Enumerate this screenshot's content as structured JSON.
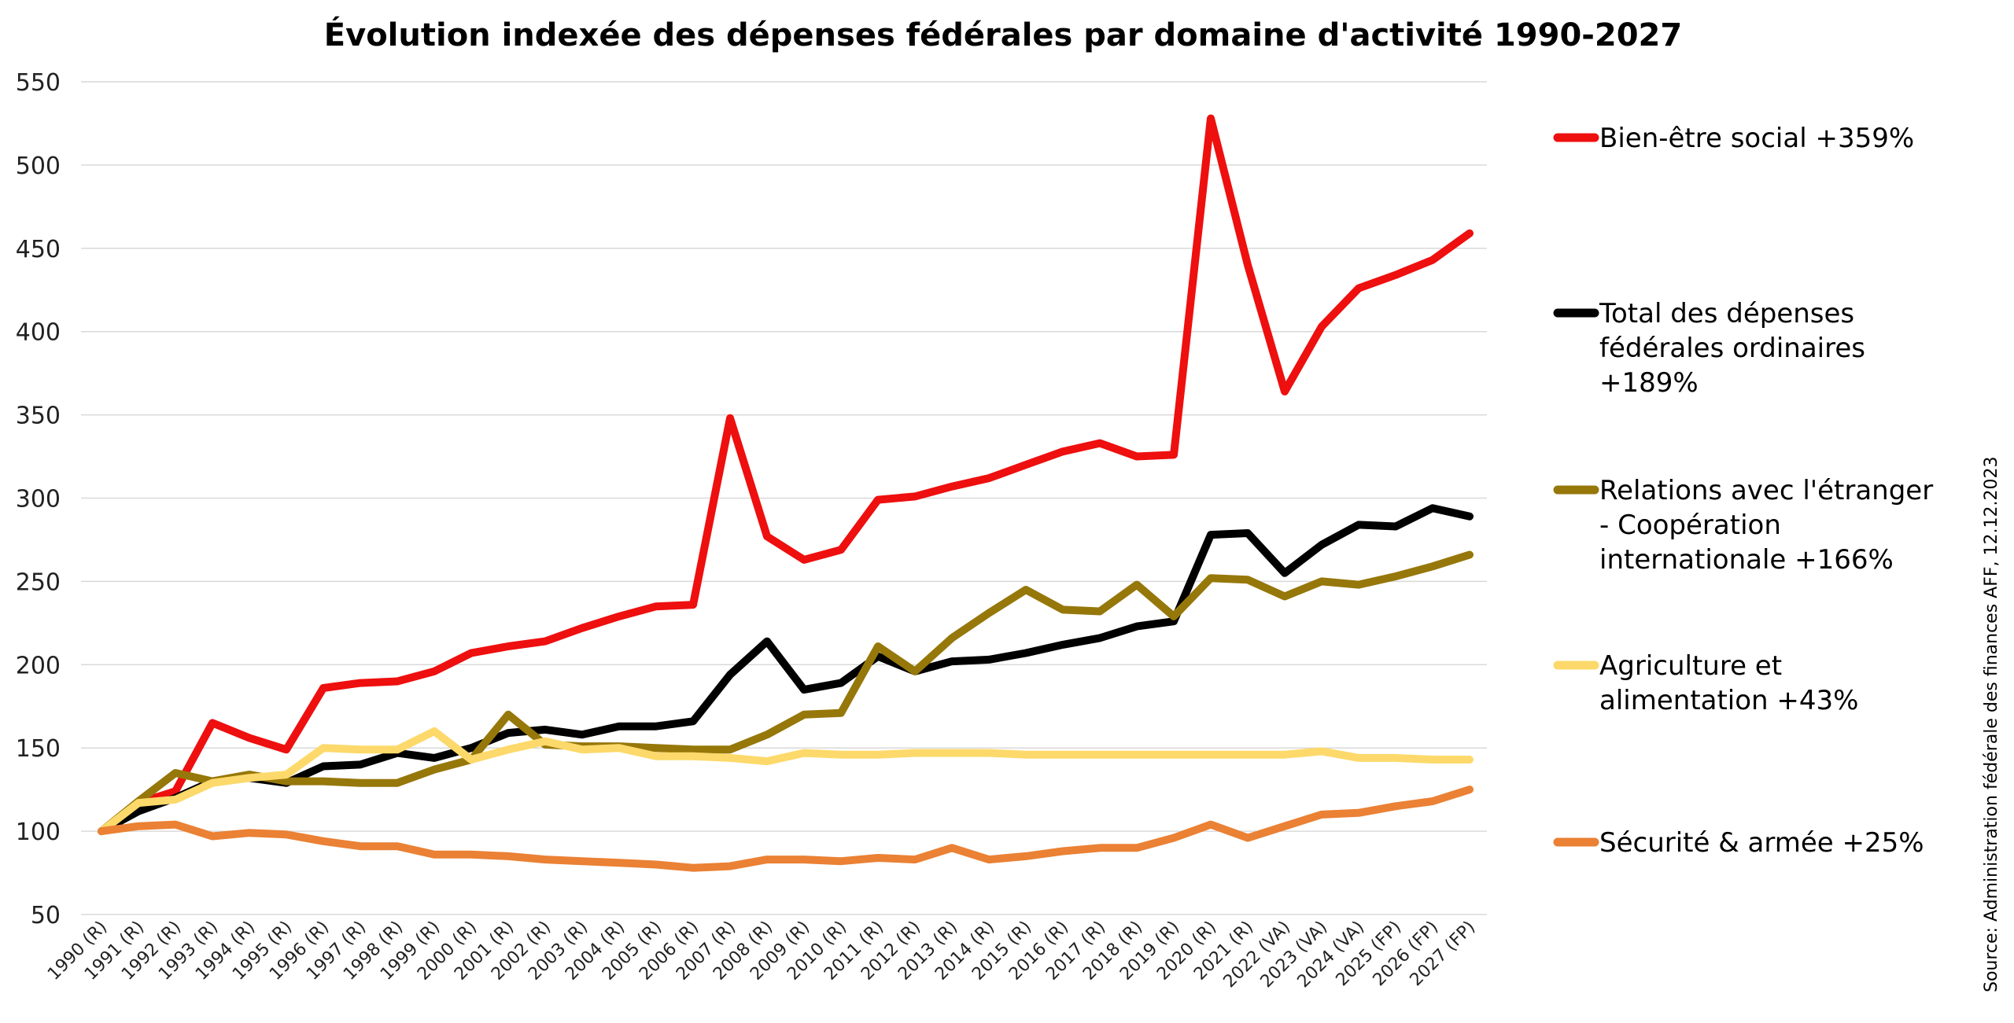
{
  "chart_data": {
    "type": "line",
    "title": "Évolution indexée des dépenses fédérales par domaine d'activité 1990-2027",
    "xlabel": "",
    "ylabel": "",
    "ylim": [
      50,
      550
    ],
    "yticks": [
      50,
      100,
      150,
      200,
      250,
      300,
      350,
      400,
      450,
      500,
      550
    ],
    "grid": true,
    "legend_position": "right",
    "categories": [
      "1990 (R)",
      "1991 (R)",
      "1992 (R)",
      "1993 (R)",
      "1994 (R)",
      "1995 (R)",
      "1996 (R)",
      "1997 (R)",
      "1998 (R)",
      "1999 (R)",
      "2000 (R)",
      "2001 (R)",
      "2002 (R)",
      "2003 (R)",
      "2004 (R)",
      "2005 (R)",
      "2006 (R)",
      "2007 (R)",
      "2008 (R)",
      "2009 (R)",
      "2010 (R)",
      "2011 (R)",
      "2012 (R)",
      "2013 (R)",
      "2014 (R)",
      "2015 (R)",
      "2016 (R)",
      "2017 (R)",
      "2018 (R)",
      "2019 (R)",
      "2020 (R)",
      "2021 (R)",
      "2022 (VA)",
      "2023 (VA)",
      "2024 (VA)",
      "2025 (FP)",
      "2026 (FP)",
      "2027 (FP)"
    ],
    "series": [
      {
        "name": "Bien-être social +359%",
        "color": "#ee0f0f",
        "legend_lines": [
          "Bien-être social +359%"
        ],
        "values": [
          100,
          117,
          124,
          165,
          156,
          149,
          186,
          189,
          190,
          196,
          207,
          211,
          214,
          222,
          229,
          235,
          236,
          348,
          277,
          263,
          269,
          299,
          301,
          307,
          312,
          320,
          328,
          333,
          325,
          326,
          528,
          440,
          364,
          403,
          426,
          434,
          443,
          459
        ]
      },
      {
        "name": "Total des dépenses fédérales ordinaires +189%",
        "color": "#000000",
        "legend_lines": [
          "Total des dépenses",
          "fédérales ordinaires",
          "+189%"
        ],
        "values": [
          100,
          112,
          120,
          130,
          132,
          129,
          139,
          140,
          147,
          144,
          150,
          159,
          161,
          158,
          163,
          163,
          166,
          194,
          214,
          185,
          189,
          205,
          196,
          202,
          203,
          207,
          212,
          216,
          223,
          226,
          278,
          279,
          255,
          272,
          284,
          283,
          294,
          289
        ]
      },
      {
        "name": "Relations avec l'étranger - Coopération internationale +166%",
        "color": "#967709",
        "legend_lines": [
          "Relations avec l'étranger",
          "- Coopération",
          "internationale +166%"
        ],
        "values": [
          100,
          118,
          135,
          130,
          134,
          130,
          130,
          129,
          129,
          137,
          143,
          170,
          152,
          151,
          151,
          150,
          149,
          149,
          158,
          170,
          171,
          211,
          196,
          216,
          231,
          245,
          233,
          232,
          248,
          229,
          252,
          251,
          241,
          250,
          248,
          253,
          259,
          266
        ]
      },
      {
        "name": "Agriculture et alimentation +43%",
        "color": "#fcd96a",
        "legend_lines": [
          "Agriculture et",
          "alimentation +43%"
        ],
        "values": [
          100,
          117,
          119,
          129,
          132,
          134,
          150,
          149,
          149,
          160,
          143,
          149,
          154,
          149,
          150,
          145,
          145,
          144,
          142,
          147,
          146,
          146,
          147,
          147,
          147,
          146,
          146,
          146,
          146,
          146,
          146,
          146,
          146,
          148,
          144,
          144,
          143,
          143
        ]
      },
      {
        "name": "Sécurité & armée +25%",
        "color": "#ea8134",
        "legend_lines": [
          "Sécurité & armée +25%"
        ],
        "values": [
          100,
          103,
          104,
          97,
          99,
          98,
          94,
          91,
          91,
          86,
          86,
          85,
          83,
          82,
          81,
          80,
          78,
          79,
          83,
          83,
          82,
          84,
          83,
          90,
          83,
          85,
          88,
          90,
          90,
          96,
          104,
          96,
          103,
          110,
          111,
          115,
          118,
          125
        ]
      }
    ]
  },
  "source": "Source: Administration fédérale des finances AFF, 12.12.2023"
}
